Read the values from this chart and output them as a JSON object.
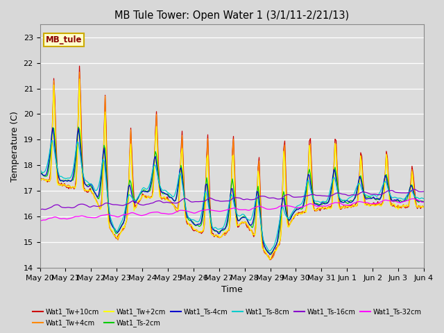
{
  "title": "MB Tule Tower: Open Water 1 (3/1/11-2/21/13)",
  "xlabel": "Time",
  "ylabel": "Temperature (C)",
  "ylim": [
    14.0,
    23.5
  ],
  "yticks": [
    14.0,
    15.0,
    16.0,
    17.0,
    18.0,
    19.0,
    20.0,
    21.0,
    22.0,
    23.0
  ],
  "bg_color": "#dcdcdc",
  "legend_label": "MB_tule",
  "series_colors": {
    "Wat1_Tw+10cm": "#cc0000",
    "Wat1_Tw+4cm": "#ff8800",
    "Wat1_Tw+2cm": "#ffff00",
    "Wat1_Ts-2cm": "#00cc00",
    "Wat1_Ts-4cm": "#0000cc",
    "Wat1_Ts-8cm": "#00cccc",
    "Wat1_Ts-16cm": "#8800cc",
    "Wat1_Ts-32cm": "#ff00ff"
  },
  "xtick_labels": [
    "May 20",
    "May 21",
    "May 22",
    "May 23",
    "May 24",
    "May 25",
    "May 26",
    "May 27",
    "May 28",
    "May 29",
    "May 30",
    "May 31",
    "Jun 1",
    "Jun 2",
    "Jun 3",
    "Jun 4"
  ],
  "peak_heights_tw10": [
    22.0,
    22.4,
    21.3,
    19.8,
    20.5,
    19.8,
    19.8,
    19.8,
    19.0,
    19.8,
    19.8,
    19.8,
    19.0,
    19.0,
    18.2,
    18.0
  ],
  "trough_base": [
    17.5,
    17.2,
    17.0,
    15.1,
    16.8,
    16.7,
    15.5,
    15.2,
    15.8,
    14.3,
    16.1,
    16.3,
    16.4,
    16.5,
    16.4,
    16.4
  ],
  "n_per_day": 24
}
